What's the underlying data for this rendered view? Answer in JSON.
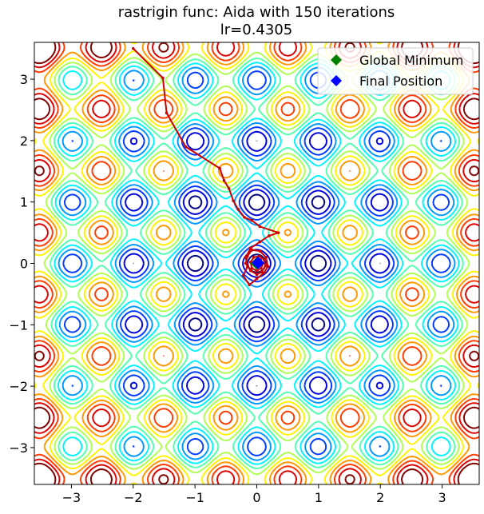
{
  "chart_data": {
    "type": "contour",
    "title": "rastrigin func: Aida with 150 iterations",
    "subtitle": "lr=0.4305",
    "function": "rastrigin",
    "xlim": [
      -3.6,
      3.6
    ],
    "ylim": [
      -3.6,
      3.6
    ],
    "x_ticks": [
      -3,
      -2,
      -1,
      0,
      1,
      2,
      3
    ],
    "y_ticks": [
      -3,
      -2,
      -1,
      0,
      1,
      2,
      3
    ],
    "x_tick_labels": [
      "−3",
      "−2",
      "−1",
      "0",
      "1",
      "2",
      "3"
    ],
    "y_tick_labels": [
      "−3",
      "−2",
      "−1",
      "0",
      "1",
      "2",
      "3"
    ],
    "legend_position": "top-right",
    "legend": [
      {
        "label": "Global Minimum",
        "color": "#008000",
        "marker": "diamond"
      },
      {
        "label": "Final Position",
        "color": "#0000ff",
        "marker": "diamond"
      }
    ],
    "global_minimum": {
      "x": 0.0,
      "y": 0.0
    },
    "final_position": {
      "x": 0.02,
      "y": 0.01
    },
    "path_color": "#cc0000",
    "path": {
      "x": [
        -2.0,
        -1.52,
        -1.46,
        -1.15,
        -0.6,
        -0.53,
        -0.45,
        -0.38,
        -0.3,
        -0.2,
        -0.08,
        0.05,
        0.35,
        0.2,
        0.05,
        -0.1,
        -0.18,
        -0.15,
        -0.22,
        -0.12,
        0.0,
        0.12,
        0.18,
        0.15,
        0.05,
        -0.08,
        -0.15,
        -0.18,
        -0.1,
        0.0,
        0.08,
        0.14,
        0.12,
        0.04,
        -0.05,
        -0.1,
        -0.08,
        0.0,
        0.07,
        0.1,
        0.06,
        0.0,
        -0.05,
        -0.04,
        0.02
      ],
      "y": [
        3.5,
        3.02,
        2.45,
        1.9,
        1.55,
        1.35,
        1.22,
        1.02,
        0.88,
        0.75,
        0.7,
        0.6,
        0.5,
        0.45,
        0.35,
        0.25,
        0.1,
        -0.05,
        -0.2,
        -0.35,
        -0.25,
        -0.15,
        -0.05,
        0.1,
        0.2,
        0.22,
        0.12,
        0.0,
        -0.12,
        -0.18,
        -0.14,
        -0.04,
        0.06,
        0.12,
        0.1,
        0.02,
        -0.08,
        -0.12,
        -0.08,
        0.0,
        0.06,
        0.07,
        0.02,
        -0.02,
        0.01
      ]
    }
  }
}
